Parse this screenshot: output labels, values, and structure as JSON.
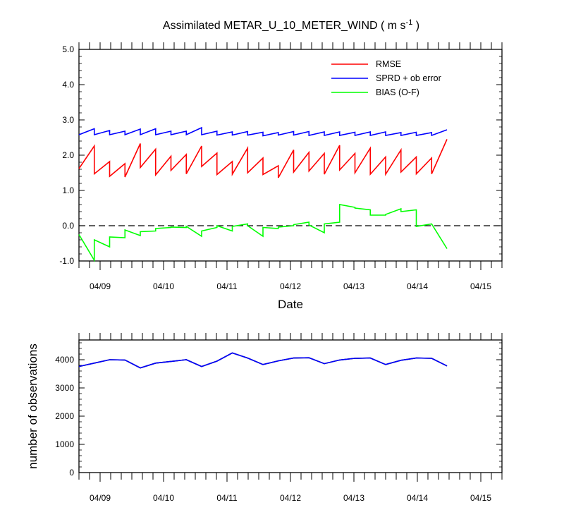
{
  "chart_data": [
    {
      "type": "line",
      "title_main": "Assimilated METAR_U_10_METER_WIND ( m s",
      "title_sup": "-1",
      "title_end": " )",
      "xlabel": "Date",
      "ylabel": "",
      "xlim": [
        0,
        40
      ],
      "ylim": [
        -1.0,
        5.0
      ],
      "yticks": [
        -1.0,
        0.0,
        1.0,
        2.0,
        3.0,
        4.0,
        5.0
      ],
      "ytick_labels": [
        "-1.0",
        "0.0",
        "1.0",
        "2.0",
        "3.0",
        "4.0",
        "5.0"
      ],
      "xticks": [
        2,
        8,
        14,
        20,
        26,
        32,
        38
      ],
      "xtick_labels": [
        "04/09",
        "04/10",
        "04/11",
        "04/12",
        "04/13",
        "04/14",
        "04/15"
      ],
      "reference_line": 0.0,
      "legend_position": "top-right",
      "series": [
        {
          "name": "RMSE",
          "color": "#ff0000",
          "style": "sawtooth",
          "points": [
            [
              0,
              1.62
            ],
            [
              1.45,
              2.26
            ],
            [
              1.45,
              1.47
            ],
            [
              2.9,
              1.82
            ],
            [
              2.9,
              1.4
            ],
            [
              4.35,
              1.76
            ],
            [
              4.35,
              1.38
            ],
            [
              5.8,
              2.33
            ],
            [
              5.8,
              1.65
            ],
            [
              7.25,
              2.17
            ],
            [
              7.25,
              1.44
            ],
            [
              8.7,
              1.97
            ],
            [
              8.7,
              1.57
            ],
            [
              10.15,
              2.02
            ],
            [
              10.15,
              1.47
            ],
            [
              11.6,
              2.26
            ],
            [
              11.6,
              1.68
            ],
            [
              13.05,
              2.06
            ],
            [
              13.05,
              1.45
            ],
            [
              14.5,
              1.82
            ],
            [
              14.5,
              1.46
            ],
            [
              15.95,
              2.2
            ],
            [
              15.95,
              1.5
            ],
            [
              17.4,
              1.92
            ],
            [
              17.4,
              1.45
            ],
            [
              18.85,
              1.7
            ],
            [
              18.85,
              1.36
            ],
            [
              20.3,
              2.15
            ],
            [
              20.3,
              1.52
            ],
            [
              21.75,
              2.08
            ],
            [
              21.75,
              1.55
            ],
            [
              23.2,
              2.05
            ],
            [
              23.2,
              1.46
            ],
            [
              24.65,
              2.28
            ],
            [
              24.65,
              1.58
            ],
            [
              26.1,
              2.05
            ],
            [
              26.1,
              1.5
            ],
            [
              27.55,
              2.2
            ],
            [
              27.55,
              1.46
            ],
            [
              29.0,
              1.95
            ],
            [
              29.0,
              1.46
            ],
            [
              30.45,
              2.15
            ],
            [
              30.45,
              1.52
            ],
            [
              31.9,
              1.95
            ],
            [
              31.9,
              1.47
            ],
            [
              33.35,
              1.92
            ],
            [
              33.35,
              1.47
            ],
            [
              34.8,
              2.45
            ]
          ]
        },
        {
          "name": "SPRD + ob error",
          "color": "#0000ff",
          "style": "sawtooth",
          "points": [
            [
              0,
              2.58
            ],
            [
              1.45,
              2.75
            ],
            [
              1.45,
              2.58
            ],
            [
              2.9,
              2.7
            ],
            [
              2.9,
              2.58
            ],
            [
              4.35,
              2.68
            ],
            [
              4.35,
              2.58
            ],
            [
              5.8,
              2.74
            ],
            [
              5.8,
              2.58
            ],
            [
              7.25,
              2.75
            ],
            [
              7.25,
              2.58
            ],
            [
              8.7,
              2.68
            ],
            [
              8.7,
              2.58
            ],
            [
              10.15,
              2.68
            ],
            [
              10.15,
              2.58
            ],
            [
              11.6,
              2.78
            ],
            [
              11.6,
              2.58
            ],
            [
              13.05,
              2.68
            ],
            [
              13.05,
              2.57
            ],
            [
              14.5,
              2.66
            ],
            [
              14.5,
              2.57
            ],
            [
              15.95,
              2.67
            ],
            [
              15.95,
              2.57
            ],
            [
              17.4,
              2.65
            ],
            [
              17.4,
              2.55
            ],
            [
              18.85,
              2.64
            ],
            [
              18.85,
              2.57
            ],
            [
              20.3,
              2.67
            ],
            [
              20.3,
              2.57
            ],
            [
              21.75,
              2.67
            ],
            [
              21.75,
              2.56
            ],
            [
              23.2,
              2.66
            ],
            [
              23.2,
              2.56
            ],
            [
              24.65,
              2.66
            ],
            [
              24.65,
              2.56
            ],
            [
              26.1,
              2.65
            ],
            [
              26.1,
              2.56
            ],
            [
              27.55,
              2.66
            ],
            [
              27.55,
              2.56
            ],
            [
              29.0,
              2.66
            ],
            [
              29.0,
              2.56
            ],
            [
              30.45,
              2.64
            ],
            [
              30.45,
              2.56
            ],
            [
              31.9,
              2.65
            ],
            [
              31.9,
              2.56
            ],
            [
              33.35,
              2.64
            ],
            [
              33.35,
              2.56
            ],
            [
              34.8,
              2.72
            ]
          ]
        },
        {
          "name": "BIAS (O-F)",
          "color": "#00ff00",
          "style": "sawtooth",
          "points": [
            [
              0,
              -0.25
            ],
            [
              1.45,
              -0.98
            ],
            [
              1.45,
              -0.4
            ],
            [
              2.9,
              -0.6
            ],
            [
              2.9,
              -0.32
            ],
            [
              4.35,
              -0.34
            ],
            [
              4.35,
              -0.12
            ],
            [
              5.8,
              -0.28
            ],
            [
              5.8,
              -0.17
            ],
            [
              7.25,
              -0.15
            ],
            [
              7.25,
              -0.08
            ],
            [
              8.7,
              -0.05
            ],
            [
              8.7,
              -0.04
            ],
            [
              10.15,
              -0.05
            ],
            [
              10.15,
              -0.02
            ],
            [
              11.6,
              -0.3
            ],
            [
              11.6,
              -0.15
            ],
            [
              13.05,
              -0.05
            ],
            [
              13.05,
              0.0
            ],
            [
              14.5,
              -0.15
            ],
            [
              14.5,
              -0.02
            ],
            [
              15.95,
              0.05
            ],
            [
              15.95,
              0.0
            ],
            [
              17.4,
              -0.3
            ],
            [
              17.4,
              -0.05
            ],
            [
              18.85,
              -0.08
            ],
            [
              18.85,
              -0.04
            ],
            [
              20.3,
              0.0
            ],
            [
              20.3,
              0.03
            ],
            [
              21.75,
              0.1
            ],
            [
              21.75,
              0.02
            ],
            [
              23.2,
              -0.2
            ],
            [
              23.2,
              0.05
            ],
            [
              24.65,
              0.1
            ],
            [
              24.65,
              0.6
            ],
            [
              26.1,
              0.52
            ],
            [
              26.1,
              0.5
            ],
            [
              27.55,
              0.45
            ],
            [
              27.55,
              0.3
            ],
            [
              29.0,
              0.3
            ],
            [
              29.0,
              0.32
            ],
            [
              30.45,
              0.48
            ],
            [
              30.45,
              0.4
            ],
            [
              31.9,
              0.45
            ],
            [
              31.9,
              -0.02
            ],
            [
              33.35,
              0.05
            ],
            [
              33.35,
              0.05
            ],
            [
              34.8,
              -0.65
            ]
          ]
        }
      ]
    },
    {
      "type": "line",
      "xlabel": "",
      "ylabel": "number of observations",
      "xlim": [
        0,
        40
      ],
      "ylim": [
        0,
        4700
      ],
      "yticks": [
        0,
        1000,
        2000,
        3000,
        4000
      ],
      "ytick_labels": [
        "0",
        "1000",
        "2000",
        "3000",
        "4000"
      ],
      "xticks": [
        2,
        8,
        14,
        20,
        26,
        32,
        38
      ],
      "xtick_labels": [
        "04/09",
        "04/10",
        "04/11",
        "04/12",
        "04/13",
        "04/14",
        "04/15"
      ],
      "series": [
        {
          "name": "",
          "color": "#000000",
          "x": [
            0,
            1.45,
            2.9,
            4.35,
            5.8,
            7.25,
            8.7,
            10.15,
            11.6,
            13.05,
            14.5,
            15.95,
            17.4,
            18.85,
            20.3,
            21.75,
            23.2,
            24.65,
            26.1,
            27.55,
            29.0,
            30.45,
            31.9,
            33.35,
            34.8
          ],
          "values": [
            3760,
            3880,
            4000,
            3990,
            3710,
            3880,
            3940,
            4000,
            3760,
            3950,
            4240,
            4060,
            3830,
            3960,
            4060,
            4070,
            3860,
            3990,
            4050,
            4060,
            3830,
            3980,
            4060,
            4050,
            3780
          ]
        },
        {
          "name": "",
          "color": "#0000ff",
          "x": [
            0,
            1.45,
            2.9,
            4.35,
            5.8,
            7.25,
            8.7,
            10.15,
            11.6,
            13.05,
            14.5,
            15.95,
            17.4,
            18.85,
            20.3,
            21.75,
            23.2,
            24.65,
            26.1,
            27.55,
            29.0,
            30.45,
            31.9,
            33.35,
            34.8
          ],
          "values": [
            3760,
            3880,
            4000,
            3990,
            3710,
            3880,
            3940,
            4000,
            3760,
            3950,
            4240,
            4060,
            3830,
            3960,
            4060,
            4070,
            3860,
            3990,
            4050,
            4060,
            3830,
            3980,
            4060,
            4050,
            3780
          ]
        }
      ]
    }
  ]
}
